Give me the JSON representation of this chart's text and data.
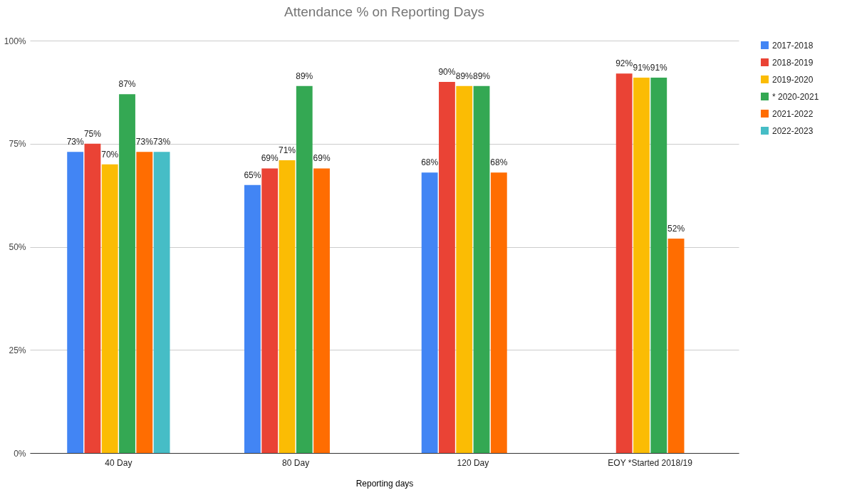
{
  "chart_data": {
    "type": "bar",
    "title": "Attendance % on Reporting Days",
    "xlabel": "Reporting days",
    "categories": [
      "40 Day",
      "80 Day",
      "120 Day",
      "EOY *Started 2018/19"
    ],
    "series": [
      {
        "name": "2017-2018",
        "color": "#4285f4",
        "values": [
          73,
          65,
          68,
          null
        ],
        "value_labels": [
          "73%",
          "65%",
          "68%",
          null
        ]
      },
      {
        "name": "2018-2019",
        "color": "#ea4335",
        "values": [
          75,
          69,
          90,
          92
        ],
        "value_labels": [
          "75%",
          "69%",
          "90%",
          "92%"
        ]
      },
      {
        "name": "2019-2020",
        "color": "#fbbc04",
        "values": [
          70,
          71,
          89,
          91
        ],
        "value_labels": [
          "70%",
          "71%",
          "89%",
          "91%"
        ]
      },
      {
        "name": "* 2020-2021",
        "color": "#34a853",
        "values": [
          87,
          89,
          89,
          91
        ],
        "value_labels": [
          "87%",
          "89%",
          "89%",
          "91%"
        ]
      },
      {
        "name": "2021-2022",
        "color": "#ff6d01",
        "values": [
          73,
          69,
          68,
          52
        ],
        "value_labels": [
          "73%",
          "69%",
          "68%",
          "52%"
        ]
      },
      {
        "name": "2022-2023",
        "color": "#46bdc6",
        "values": [
          73,
          null,
          null,
          null
        ],
        "value_labels": [
          "73%",
          null,
          null,
          null
        ]
      }
    ],
    "ylim": [
      0,
      100
    ],
    "yticks": [
      {
        "value": 0,
        "label": "0%"
      },
      {
        "value": 25,
        "label": "25%"
      },
      {
        "value": 50,
        "label": "50%"
      },
      {
        "value": 75,
        "label": "75%"
      },
      {
        "value": 100,
        "label": "100%"
      }
    ],
    "grid": "y",
    "legend": "right"
  }
}
